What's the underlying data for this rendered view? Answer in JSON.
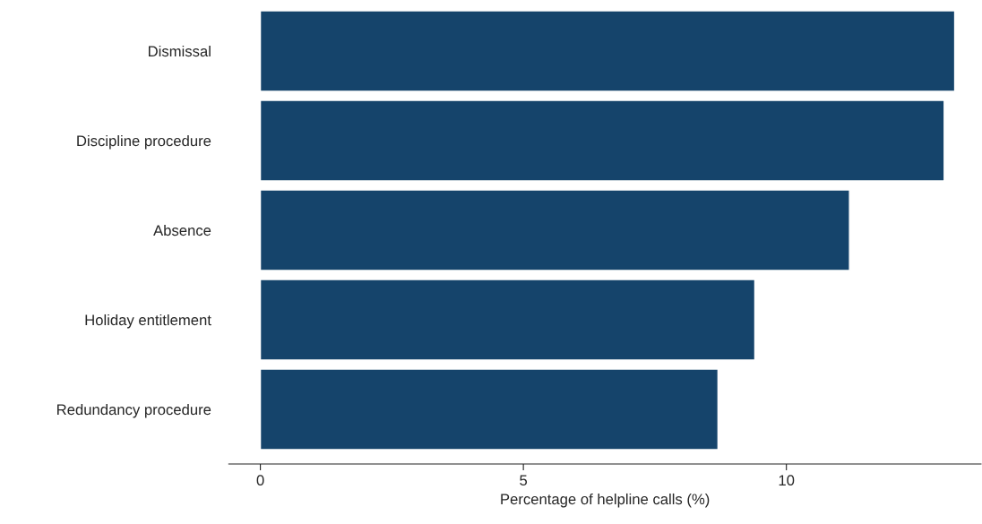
{
  "chart_data": {
    "type": "bar",
    "orientation": "horizontal",
    "categories": [
      "Dismissal",
      "Discipline procedure",
      "Absence",
      "Holiday entitlement",
      "Redundancy procedure"
    ],
    "values": [
      13.2,
      13.0,
      11.2,
      9.4,
      8.7
    ],
    "color": "#15446b",
    "xlabel": "Percentage of helpline calls (%)",
    "xlim": [
      -0.6,
      13.7
    ],
    "xticks": [
      0,
      5,
      10
    ],
    "grid": false,
    "legend": false
  }
}
